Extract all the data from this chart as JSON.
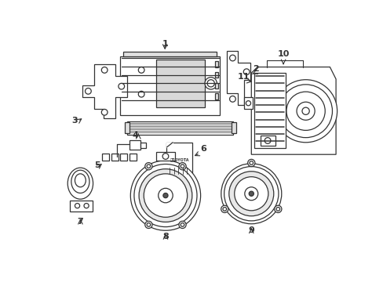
{
  "background_color": "#ffffff",
  "line_color": "#333333",
  "label_color": "#000000",
  "figsize": [
    4.89,
    3.6
  ],
  "dpi": 100
}
